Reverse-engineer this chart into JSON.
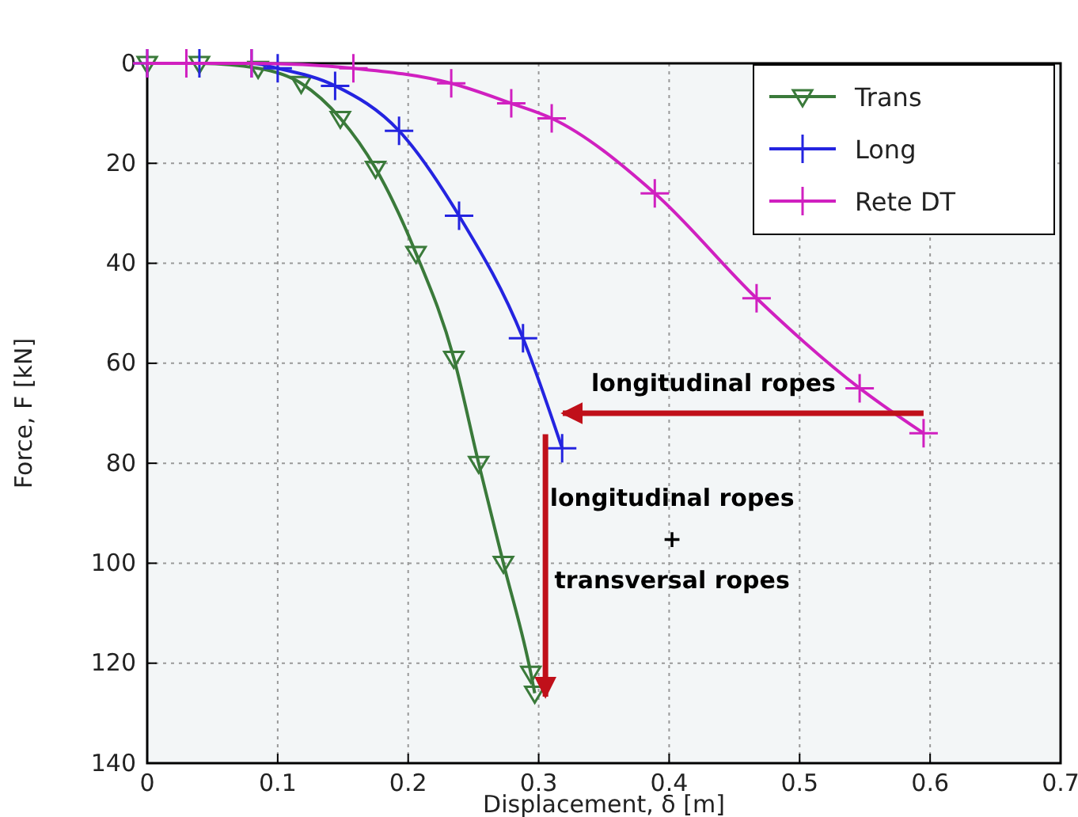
{
  "chart_data": {
    "type": "line",
    "xlabel": "Displacement, δ [m]",
    "ylabel": "Force, F [kN]",
    "xlim": [
      0,
      0.7
    ],
    "xticks": [
      0.0,
      0.1,
      0.2,
      0.3,
      0.4,
      0.5,
      0.6,
      0.7
    ],
    "ylim": [
      140,
      0
    ],
    "yticks": [
      0,
      20,
      40,
      60,
      80,
      100,
      120,
      140
    ],
    "grid": true,
    "legend": "top right",
    "line_style": "solid",
    "series": [
      {
        "name": "Trans",
        "color": "#3a7a3a",
        "marker": "triangle",
        "x": [
          0,
          0.04,
          0.085,
          0.118,
          0.148,
          0.175,
          0.206,
          0.235,
          0.254,
          0.273,
          0.294,
          0.297
        ],
        "values": [
          0,
          0,
          1,
          4,
          11,
          21,
          38,
          59,
          80,
          100,
          122,
          126
        ]
      },
      {
        "name": "Long",
        "color": "#2424e0",
        "marker": "cross",
        "x": [
          0,
          0.04,
          0.08,
          0.1,
          0.144,
          0.193,
          0.239,
          0.288,
          0.318
        ],
        "values": [
          0,
          0,
          0,
          1,
          4.5,
          13.5,
          30.5,
          55,
          77
        ]
      },
      {
        "name": "Rete DT",
        "color": "#d020c0",
        "marker": "cross",
        "x": [
          0,
          0.03,
          0.08,
          0.158,
          0.233,
          0.279,
          0.31,
          0.389,
          0.467,
          0.546,
          0.595
        ],
        "values": [
          0,
          0,
          0,
          1,
          4,
          8,
          11,
          26,
          47,
          65,
          74
        ]
      }
    ],
    "annotations": [
      "longitudinal ropes",
      "longitudinal ropes\n+\ntransversal ropes"
    ]
  }
}
